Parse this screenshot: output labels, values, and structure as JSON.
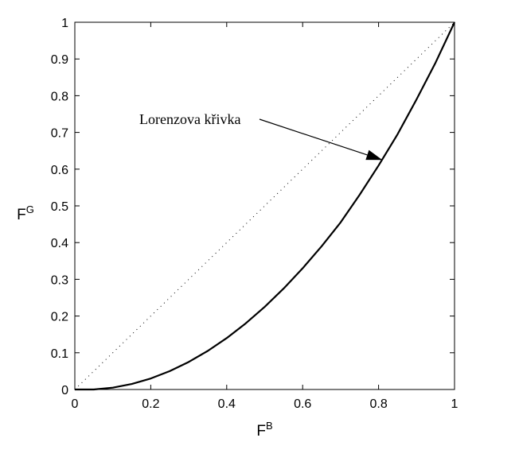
{
  "chart_data": {
    "type": "line",
    "xlabel": {
      "base": "F",
      "sup": "B"
    },
    "ylabel": {
      "base": "F",
      "sup": "G"
    },
    "xlim": [
      0,
      1
    ],
    "ylim": [
      0,
      1
    ],
    "xticks": [
      "0",
      "0.2",
      "0.4",
      "0.6",
      "0.8",
      "1"
    ],
    "yticks": [
      "0",
      "0.1",
      "0.2",
      "0.3",
      "0.4",
      "0.5",
      "0.6",
      "0.7",
      "0.8",
      "0.9",
      "1"
    ],
    "grid": false,
    "series": [
      {
        "style": "solid",
        "color": "#000000",
        "x": [
          0,
          0.05,
          0.1,
          0.15,
          0.2,
          0.25,
          0.3,
          0.35,
          0.4,
          0.45,
          0.5,
          0.55,
          0.6,
          0.65,
          0.7,
          0.75,
          0.8,
          0.85,
          0.9,
          0.95,
          1
        ],
        "y": [
          0,
          0.0,
          0.005,
          0.015,
          0.03,
          0.05,
          0.075,
          0.105,
          0.14,
          0.18,
          0.225,
          0.275,
          0.33,
          0.39,
          0.455,
          0.53,
          0.61,
          0.695,
          0.79,
          0.89,
          1
        ]
      },
      {
        "style": "dotted",
        "color": "#000000",
        "x": [
          0,
          1
        ],
        "y": [
          0,
          1
        ]
      }
    ],
    "annotations": [
      {
        "text": "Lorenzova křivka",
        "target_x": 0.81,
        "target_y": 0.625
      }
    ]
  }
}
